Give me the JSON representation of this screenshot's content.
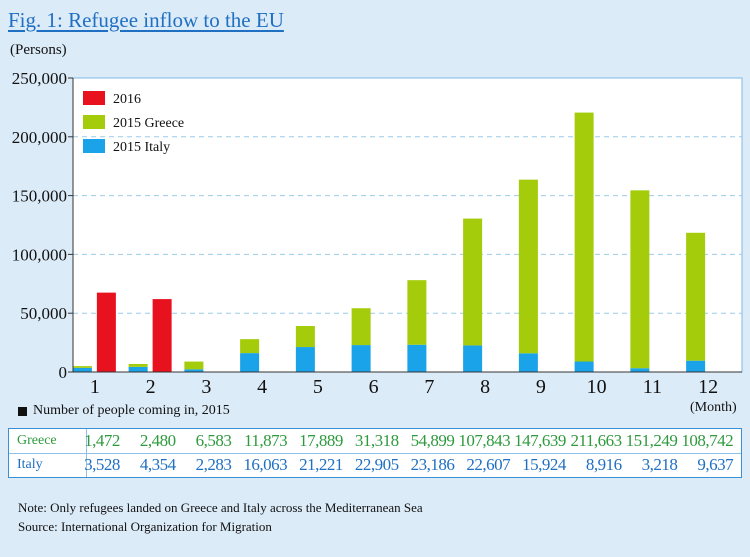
{
  "title": "Fig. 1: Refugee inflow to the EU",
  "y_unit": "(Persons)",
  "x_unit": "(Month)",
  "table_caption": "Number of people coming in, 2015",
  "table": {
    "rows": [
      {
        "name": "Greece",
        "values": [
          "1,472",
          "2,480",
          "6,583",
          "11,873",
          "17,889",
          "31,318",
          "54,899",
          "107,843",
          "147,639",
          "211,663",
          "151,249",
          "108,742"
        ]
      },
      {
        "name": "Italy",
        "values": [
          "3,528",
          "4,354",
          "2,283",
          "16,063",
          "21,221",
          "22,905",
          "23,186",
          "22,607",
          "15,924",
          "8,916",
          "3,218",
          "9,637"
        ]
      }
    ]
  },
  "notes": [
    "Note: Only refugees landed on Greece and Italy across the Mediterranean Sea",
    "Source: International Organization for Migration"
  ],
  "chart_data": {
    "type": "bar",
    "categories": [
      "1",
      "2",
      "3",
      "4",
      "5",
      "6",
      "7",
      "8",
      "9",
      "10",
      "11",
      "12"
    ],
    "ylim": [
      0,
      250000
    ],
    "yticks": [
      0,
      50000,
      100000,
      150000,
      200000,
      250000
    ],
    "ytick_labels": [
      "0",
      "50,000",
      "100,000",
      "150,000",
      "200,000",
      "250,000"
    ],
    "grid": true,
    "legend_placement": "top-left",
    "series": [
      {
        "name": "2016",
        "color": "#e8121e",
        "group": "2016",
        "values": [
          67500,
          62000,
          null,
          null,
          null,
          null,
          null,
          null,
          null,
          null,
          null,
          null
        ]
      },
      {
        "name": "2015 Italy",
        "color": "#1aa3e8",
        "group": "2015",
        "stack_order": 0,
        "values": [
          3528,
          4354,
          2283,
          16063,
          21221,
          22905,
          23186,
          22607,
          15924,
          8916,
          3218,
          9637
        ]
      },
      {
        "name": "2015 Greece",
        "color": "#a5cc0a",
        "group": "2015",
        "stack_order": 1,
        "values": [
          1472,
          2480,
          6583,
          11873,
          17889,
          31318,
          54899,
          107843,
          147639,
          211663,
          151249,
          108742
        ]
      }
    ],
    "legend": [
      "2016",
      "2015 Greece",
      "2015 Italy"
    ]
  }
}
